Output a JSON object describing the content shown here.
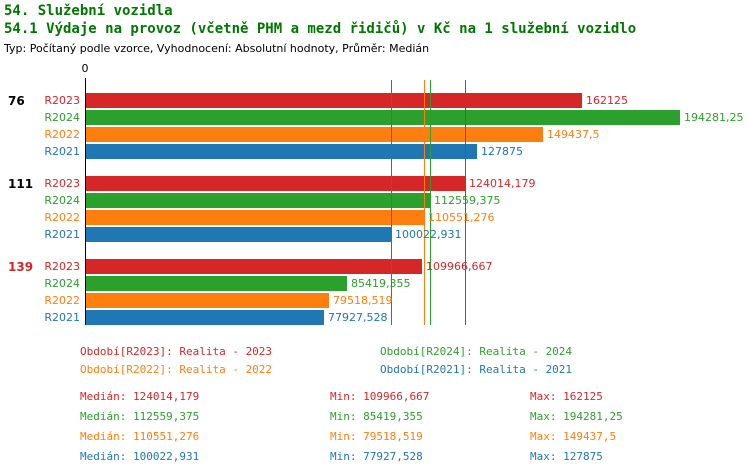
{
  "header": {
    "title": "54. Služební vozidla",
    "subtitle": "54.1 Výdaje na provoz (včetně PHM a mezd řidičů) v Kč na 1 služební vozidlo",
    "meta": "Typ: Počítaný podle vzorce, Vyhodnocení: Absolutní hodnoty, Průměr: Medián"
  },
  "colors": {
    "R2023": "#d62728",
    "R2024": "#2ca02c",
    "R2022": "#ff7f0e",
    "R2021": "#1f77b4",
    "title": "#007700",
    "text": "#000000"
  },
  "chart_data": {
    "type": "bar",
    "orientation": "horizontal",
    "title": "54.1 Výdaje na provoz (včetně PHM a mezd řidičů) v Kč na 1 služební vozidlo",
    "zero_label": "0",
    "xlim": [
      0,
      210000
    ],
    "grid": false,
    "series_order": [
      "R2023",
      "R2024",
      "R2022",
      "R2021"
    ],
    "groups": [
      {
        "label": "76",
        "label_color": "#000000",
        "bars": [
          {
            "series": "R2023",
            "value": 162125,
            "label": "162125"
          },
          {
            "series": "R2024",
            "value": 194281.25,
            "label": "194281,25"
          },
          {
            "series": "R2022",
            "value": 149437.5,
            "label": "149437,5"
          },
          {
            "series": "R2021",
            "value": 127875,
            "label": "127875"
          }
        ]
      },
      {
        "label": "111",
        "label_color": "#000000",
        "bars": [
          {
            "series": "R2023",
            "value": 124014.179,
            "label": "124014,179"
          },
          {
            "series": "R2024",
            "value": 112559.375,
            "label": "112559,375"
          },
          {
            "series": "R2022",
            "value": 110551.276,
            "label": "110551,276"
          },
          {
            "series": "R2021",
            "value": 100022.931,
            "label": "100022,931"
          }
        ]
      },
      {
        "label": "139",
        "label_color": "#d62728",
        "bars": [
          {
            "series": "R2023",
            "value": 109966.667,
            "label": "109966,667"
          },
          {
            "series": "R2024",
            "value": 85419.355,
            "label": "85419,355"
          },
          {
            "series": "R2022",
            "value": 79518.519,
            "label": "79518,519"
          },
          {
            "series": "R2021",
            "value": 77927.528,
            "label": "77927,528"
          }
        ]
      }
    ],
    "median_lines": [
      {
        "series": "R2023",
        "value": 124014.179
      },
      {
        "series": "R2024",
        "value": 112559.375
      },
      {
        "series": "R2022",
        "value": 110551.276
      },
      {
        "series": "R2021",
        "value": 100022.931
      }
    ]
  },
  "legend": [
    {
      "series": "R2023",
      "text": "Období[R2023]: Realita - 2023"
    },
    {
      "series": "R2024",
      "text": "Období[R2024]: Realita - 2024"
    },
    {
      "series": "R2022",
      "text": "Období[R2022]: Realita - 2022"
    },
    {
      "series": "R2021",
      "text": "Období[R2021]: Realita - 2021"
    }
  ],
  "stats": [
    {
      "series": "R2023",
      "median": "Medián: 124014,179",
      "min": "Min: 109966,667",
      "max": "Max: 162125"
    },
    {
      "series": "R2024",
      "median": "Medián: 112559,375",
      "min": "Min: 85419,355",
      "max": "Max: 194281,25"
    },
    {
      "series": "R2022",
      "median": "Medián: 110551,276",
      "min": "Min: 79518,519",
      "max": "Max: 149437,5"
    },
    {
      "series": "R2021",
      "median": "Medián: 100022,931",
      "min": "Min: 77927,528",
      "max": "Max: 127875"
    }
  ]
}
